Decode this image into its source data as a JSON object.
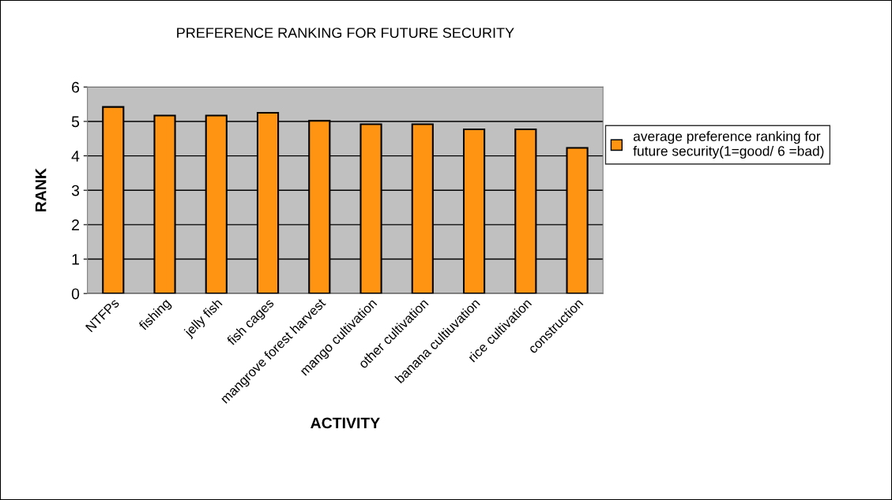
{
  "chart_data": {
    "type": "bar",
    "title": "PREFERENCE RANKING FOR FUTURE SECURITY",
    "xlabel": "ACTIVITY",
    "ylabel": "RANK",
    "categories": [
      "NTFPs",
      "fishing",
      "jelly fish",
      "fish cages",
      "mangrove forest harvest",
      "mango cultivation",
      "other cultivation",
      "banana cultiuvation",
      "rice cultivation",
      "construction"
    ],
    "series": [
      {
        "name": "average preference ranking for future security(1=good/ 6 =bad)",
        "color": "#ff9412",
        "values": [
          5.42,
          5.17,
          5.17,
          5.25,
          5.02,
          4.92,
          4.92,
          4.77,
          4.77,
          4.23
        ]
      }
    ],
    "ylim": [
      0,
      6
    ],
    "yticks": [
      0,
      1,
      2,
      3,
      4,
      5,
      6
    ],
    "grid": "y",
    "legend": "right"
  }
}
